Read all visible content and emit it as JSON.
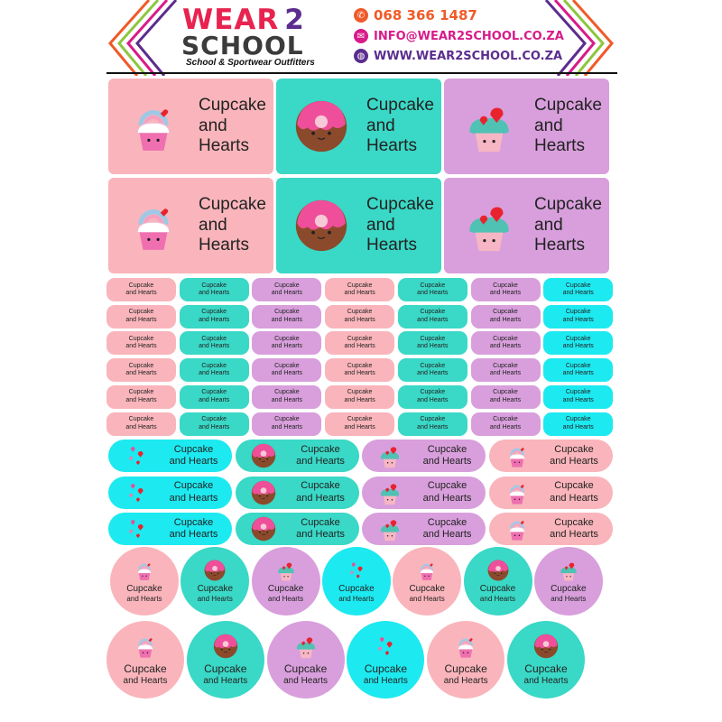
{
  "brand": {
    "logo_wear": "WEAR",
    "logo_two": "2",
    "logo_school": "SCHOOL",
    "tagline": "School & Sportwear Outfitters"
  },
  "contact": {
    "phone": "068 366 1487",
    "email": "INFO@WEAR2SCHOOL.CO.ZA",
    "website": "WWW.WEAR2SCHOOL.CO.ZA"
  },
  "label": {
    "line1": "Cupcake",
    "line2": "and Hearts"
  },
  "colors": {
    "pink": "#f9b5bb",
    "teal": "#3ad8c6",
    "purple": "#d89fdc",
    "cyan": "#1de9f0",
    "chevron": [
      "#f05a28",
      "#8dc63f",
      "#d81b8a",
      "#5b2d8e"
    ]
  },
  "icons": [
    "cupcake-rainbow-icon",
    "donut-icon",
    "cupcake-hearts-icon",
    "hearts-icon"
  ]
}
